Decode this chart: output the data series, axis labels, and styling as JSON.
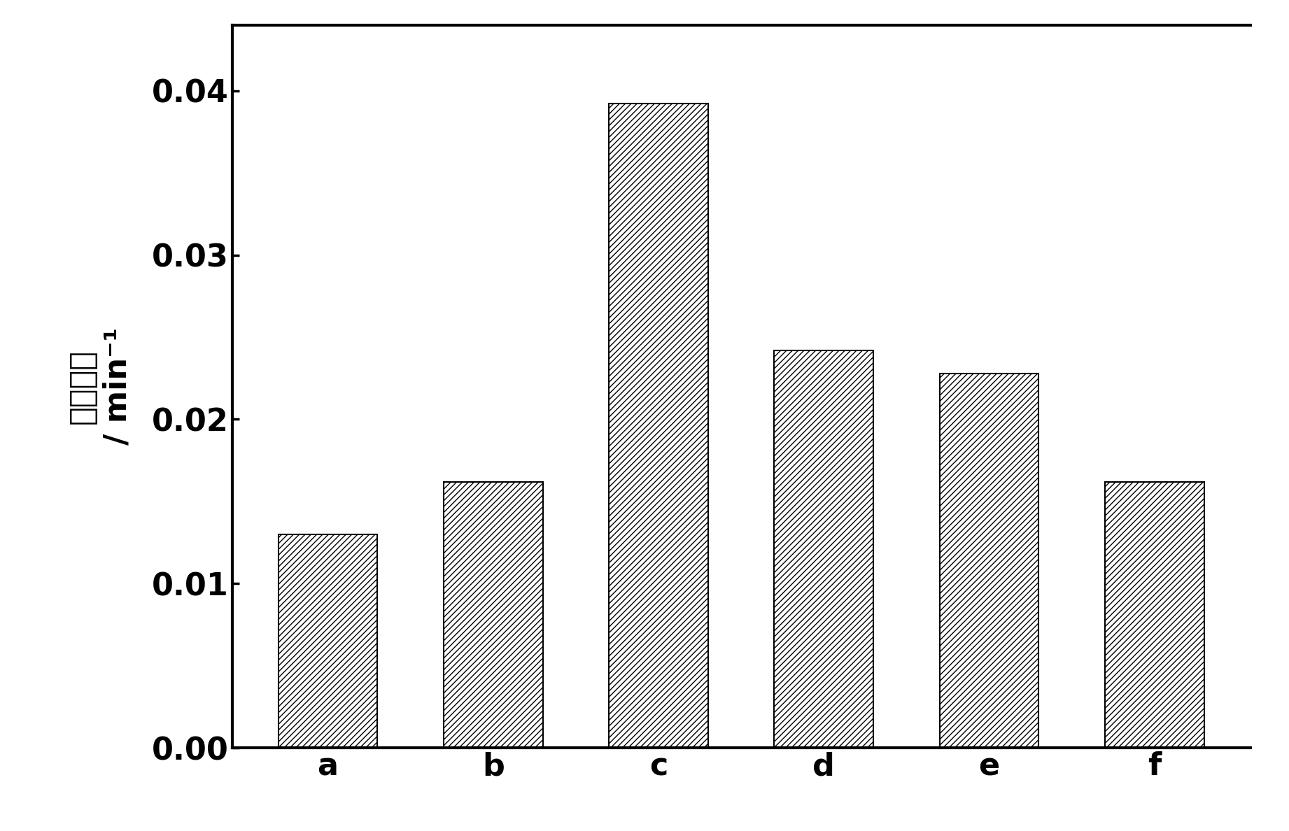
{
  "categories": [
    "a",
    "b",
    "c",
    "d",
    "e",
    "f"
  ],
  "values": [
    0.013,
    0.0162,
    0.0392,
    0.0242,
    0.0228,
    0.0162
  ],
  "bar_color": "#ffffff",
  "bar_edgecolor": "#000000",
  "hatch": "////",
  "ylabel_line1": "速率常数",
  "ylabel_line2": "/ min⁻¹",
  "ylim": [
    0.0,
    0.044
  ],
  "yticks": [
    0.0,
    0.01,
    0.02,
    0.03,
    0.04
  ],
  "ytick_labels": [
    "0.00",
    "0.01",
    "0.02",
    "0.03",
    "0.04"
  ],
  "background_color": "#ffffff",
  "bar_width": 0.6,
  "tick_fontsize": 32,
  "label_fontsize": 32,
  "spine_linewidth": 3.0,
  "bar_linewidth": 1.5
}
